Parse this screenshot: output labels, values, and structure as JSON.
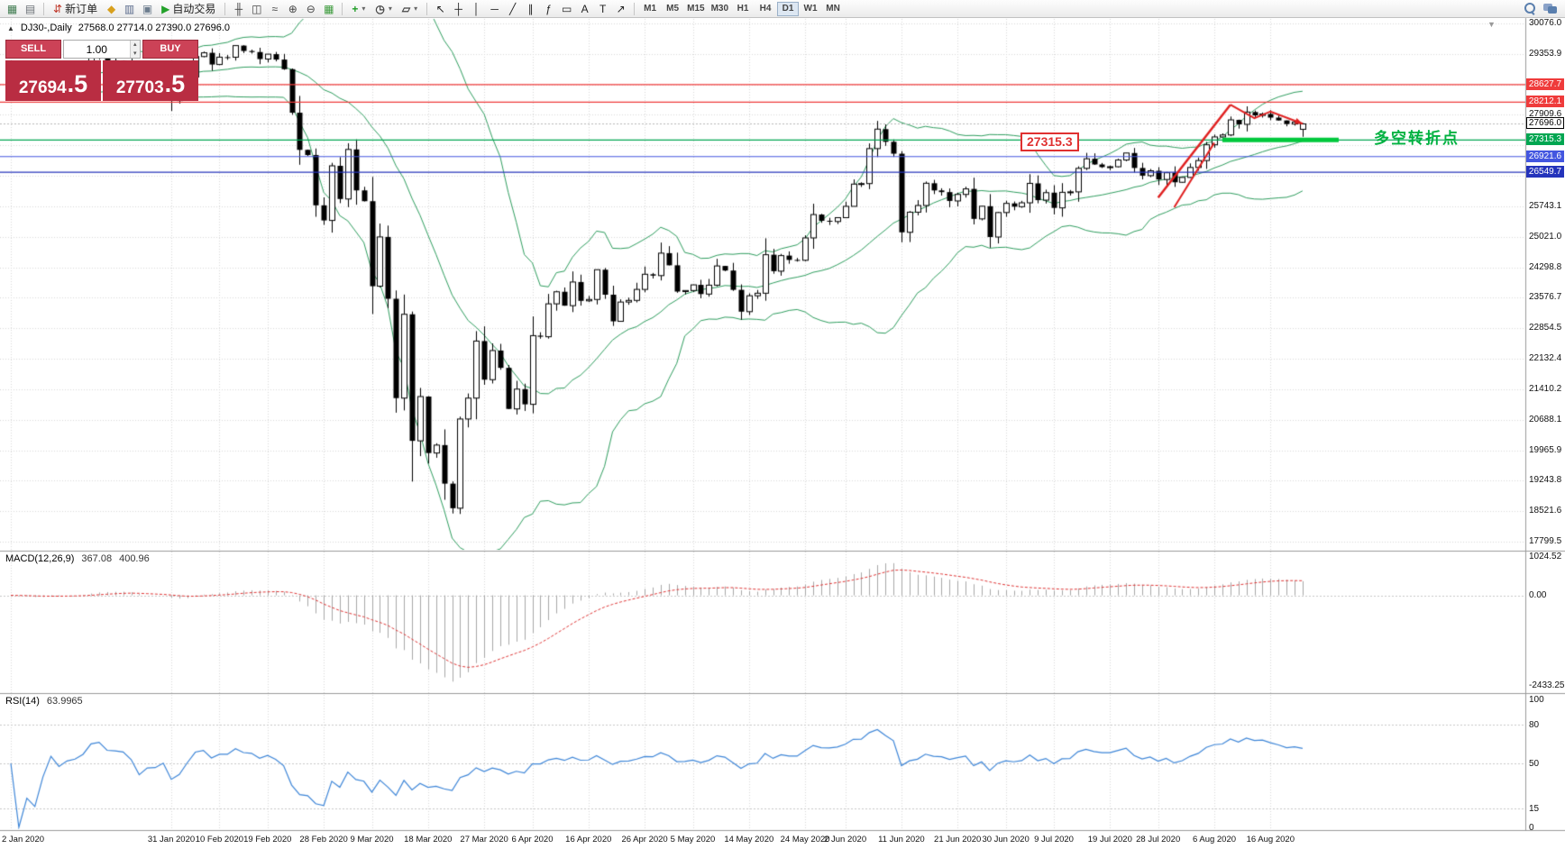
{
  "toolbar": {
    "file_group": [
      {
        "name": "new-chart-icon",
        "glyph": "▦",
        "color": "#3d7a4e"
      },
      {
        "name": "profiles-icon",
        "glyph": "▤",
        "color": "#6b7076"
      }
    ],
    "new_order": {
      "icon": "⇵",
      "icon_color": "#c0392b",
      "label": "新订单"
    },
    "app_icons": [
      {
        "name": "metaeditor-icon",
        "glyph": "◆",
        "color": "#d8a01d"
      },
      {
        "name": "market-watch-icon",
        "glyph": "▥",
        "color": "#5b6b8c"
      },
      {
        "name": "data-window-icon",
        "glyph": "▣",
        "color": "#6d7d8e"
      }
    ],
    "autotrading": {
      "icon": "▶",
      "icon_color": "#23a12a",
      "label": "自动交易"
    },
    "chart_type_group": [
      {
        "name": "bars-chart-icon",
        "glyph": "╫",
        "color": "#444444"
      },
      {
        "name": "candlestick-chart-icon",
        "glyph": "◫",
        "color": "#444444"
      },
      {
        "name": "line-chart-icon",
        "glyph": "≈",
        "color": "#444444"
      },
      {
        "name": "zoom-in-icon",
        "glyph": "⊕",
        "color": "#444444"
      },
      {
        "name": "zoom-out-icon",
        "glyph": "⊖",
        "color": "#444444"
      },
      {
        "name": "grid-icon",
        "glyph": "▦",
        "color": "#3a9a3a"
      }
    ],
    "dropdown_group": [
      {
        "name": "indicators-icon",
        "glyph": "+",
        "color": "#1f9d26"
      },
      {
        "name": "periods-icon",
        "glyph": "◷",
        "color": "#444444"
      },
      {
        "name": "templates-icon",
        "glyph": "▱",
        "color": "#444444"
      }
    ],
    "tools_group": [
      {
        "name": "cursor-icon",
        "glyph": "↖",
        "color": "#222222"
      },
      {
        "name": "crosshair-icon",
        "glyph": "┼",
        "color": "#222222"
      },
      {
        "name": "vertical-line-icon",
        "glyph": "│",
        "color": "#222222"
      },
      {
        "name": "horizontal-line-icon",
        "glyph": "─",
        "color": "#222222"
      },
      {
        "name": "trendline-icon",
        "glyph": "╱",
        "color": "#222222"
      },
      {
        "name": "channel-icon",
        "glyph": "∥",
        "color": "#222222"
      },
      {
        "name": "fibonacci-icon",
        "glyph": "ƒ",
        "color": "#222222"
      },
      {
        "name": "shapes-icon",
        "glyph": "▭",
        "color": "#222222"
      },
      {
        "name": "text-icon",
        "glyph": "A",
        "color": "#222222"
      },
      {
        "name": "label-icon",
        "glyph": "T",
        "color": "#222222"
      },
      {
        "name": "arrows-icon",
        "glyph": "↗",
        "color": "#222222"
      }
    ],
    "timeframes": {
      "items": [
        "M1",
        "M5",
        "M15",
        "M30",
        "H1",
        "H4",
        "D1",
        "W1",
        "MN"
      ],
      "active": "D1"
    },
    "caret": "▾"
  },
  "one_click": {
    "sell_label": "SELL",
    "buy_label": "BUY",
    "volume": "1.00",
    "sell_price": "27694.5",
    "buy_price": "27703.5",
    "sell_main": "27694",
    "sell_frac": ".5",
    "buy_main": "27703",
    "buy_frac": ".5",
    "spin_up": "▴",
    "spin_down": "▾"
  },
  "chart_header": {
    "toggle": "▲",
    "symbol_period": "DJ30-,Daily",
    "ohlc": "27568.0 27714.0 27390.0 27696.0",
    "shift_marker": "▼"
  },
  "levels": [
    {
      "price": 28627.7,
      "label": "28627.7",
      "color": "#ef3b3b"
    },
    {
      "price": 28212.1,
      "label": "28212.1",
      "color": "#ef3b3b"
    },
    {
      "price": 27315.3,
      "label": "27315.3",
      "color": "#00a651"
    },
    {
      "price": 26921.6,
      "label": "26921.6",
      "color": "#4356e0"
    },
    {
      "price": 26549.7,
      "label": "26549.7",
      "color": "#2433bb"
    }
  ],
  "bid": {
    "price": 27696.0,
    "label": "27696.0"
  },
  "price_axis_labels": [
    "30076.0",
    "29353.9",
    "28631.7",
    "27909.6",
    "27187.4",
    "26465.3",
    "25743.1",
    "25021.0",
    "24298.8",
    "23576.7",
    "22854.5",
    "22132.4",
    "21410.2",
    "20688.1",
    "19965.9",
    "19243.8",
    "18521.6",
    "17799.5"
  ],
  "macd": {
    "title": "MACD(12,26,9)",
    "value_main": "367.08",
    "value_signal": "400.96",
    "axis_labels": [
      "1024.52",
      "0.00",
      "-2433.25"
    ]
  },
  "rsi": {
    "title": "RSI(14)",
    "value": "63.9965",
    "axis_labels": [
      "100",
      "80",
      "50",
      "15",
      "0"
    ],
    "levels": [
      80,
      50,
      15
    ]
  },
  "annotations": {
    "price_callout": {
      "text": "27315.3",
      "color": "#e03030"
    },
    "turning_point": {
      "text": "多空转折点",
      "color": "#00b140"
    },
    "support_segment": {
      "price": 27315.3,
      "from_bar": 151,
      "to_bar": 165.5,
      "color": "#00c83c",
      "width": 5
    },
    "trend_lines": [
      {
        "points": [
          [
            143,
            25950
          ],
          [
            152,
            28150
          ]
        ],
        "color": "#e02020",
        "width": 2.5,
        "arrow": false
      },
      {
        "points": [
          [
            145,
            25720
          ],
          [
            150,
            27250
          ]
        ],
        "color": "#e02020",
        "width": 2,
        "arrow": false
      },
      {
        "points": [
          [
            152,
            28150
          ],
          [
            155,
            27830
          ],
          [
            157,
            27990
          ],
          [
            161,
            27700
          ]
        ],
        "color": "#e02020",
        "width": 2,
        "arrow": true
      }
    ]
  },
  "chart_data": {
    "type": "candlestick",
    "symbol": "DJ30-",
    "period": "Daily",
    "indicators": [
      "Bollinger Bands (20,2)",
      "MACD(12,26,9)",
      "RSI(14)"
    ],
    "first_open": 28639,
    "last_bar": {
      "o": 27568.0,
      "h": 27714.0,
      "l": 27390.0,
      "c": 27696.0
    },
    "closes": [
      28869,
      28635,
      28704,
      28584,
      28745,
      28957,
      28824,
      28907,
      28939,
      29030,
      29298,
      29348,
      29196,
      29186,
      29160,
      28990,
      28536,
      28723,
      28734,
      28859,
      28256,
      28400,
      28808,
      29291,
      29380,
      29103,
      29277,
      29276,
      29551,
      29423,
      29398,
      29232,
      29348,
      29220,
      28992,
      27961,
      27081,
      26958,
      25767,
      25409,
      26703,
      25917,
      27091,
      26121,
      25865,
      23851,
      25018,
      23553,
      21200,
      23186,
      20188,
      21237,
      19899,
      20087,
      19174,
      18592,
      20705,
      21200,
      22552,
      21637,
      22327,
      21917,
      20944,
      21413,
      21053,
      22680,
      22654,
      23434,
      23719,
      23390,
      23950,
      23504,
      23537,
      24242,
      23650,
      23019,
      23476,
      23515,
      23775,
      24134,
      24102,
      24634,
      24346,
      23724,
      23749,
      23883,
      23665,
      23876,
      24331,
      24222,
      23765,
      23248,
      23625,
      23685,
      24597,
      24207,
      24576,
      24474,
      24465,
      24995,
      25548,
      25401,
      25383,
      25475,
      25743,
      26270,
      26282,
      27111,
      27572,
      27272,
      26990,
      25128,
      25605,
      25763,
      26290,
      26120,
      26080,
      25871,
      26025,
      26156,
      25446,
      25746,
      25016,
      25596,
      25813,
      25735,
      25827,
      26287,
      25890,
      26067,
      25706,
      26075,
      26086,
      26643,
      26870,
      26735,
      26672,
      26681,
      26840,
      27006,
      26652,
      26470,
      26585,
      26379,
      26539,
      26313,
      26428,
      26664,
      26828,
      27201,
      27387,
      27433,
      27791,
      27686,
      27977,
      27897,
      27931,
      27845,
      27778,
      27693,
      27740,
      27696
    ],
    "x_ticks": [
      {
        "label": "2 Jan 2020",
        "i": 0
      },
      {
        "label": "31 Jan 2020",
        "i": 20
      },
      {
        "label": "10 Feb 2020",
        "i": 26
      },
      {
        "label": "19 Feb 2020",
        "i": 32
      },
      {
        "label": "28 Feb 2020",
        "i": 39
      },
      {
        "label": "9 Mar 2020",
        "i": 45
      },
      {
        "label": "18 Mar 2020",
        "i": 52
      },
      {
        "label": "27 Mar 2020",
        "i": 59
      },
      {
        "label": "6 Apr 2020",
        "i": 65
      },
      {
        "label": "16 Apr 2020",
        "i": 72
      },
      {
        "label": "26 Apr 2020",
        "i": 79
      },
      {
        "label": "5 May 2020",
        "i": 85
      },
      {
        "label": "14 May 2020",
        "i": 92
      },
      {
        "label": "24 May 2020",
        "i": 99
      },
      {
        "label": "2 Jun 2020",
        "i": 104
      },
      {
        "label": "11 Jun 2020",
        "i": 111
      },
      {
        "label": "21 Jun 2020",
        "i": 118
      },
      {
        "label": "30 Jun 2020",
        "i": 124
      },
      {
        "label": "9 Jul 2020",
        "i": 130
      },
      {
        "label": "19 Jul 2020",
        "i": 137
      },
      {
        "label": "28 Jul 2020",
        "i": 143
      },
      {
        "label": "6 Aug 2020",
        "i": 150
      },
      {
        "label": "16 Aug 2020",
        "i": 157
      }
    ],
    "price_axis": {
      "top_label": 30076.0,
      "bottom_label": 17799.5
    },
    "macd_axis": {
      "max": 1024.52,
      "min": -2433.25
    },
    "rsi_axis": {
      "max": 100,
      "min": 0
    }
  }
}
